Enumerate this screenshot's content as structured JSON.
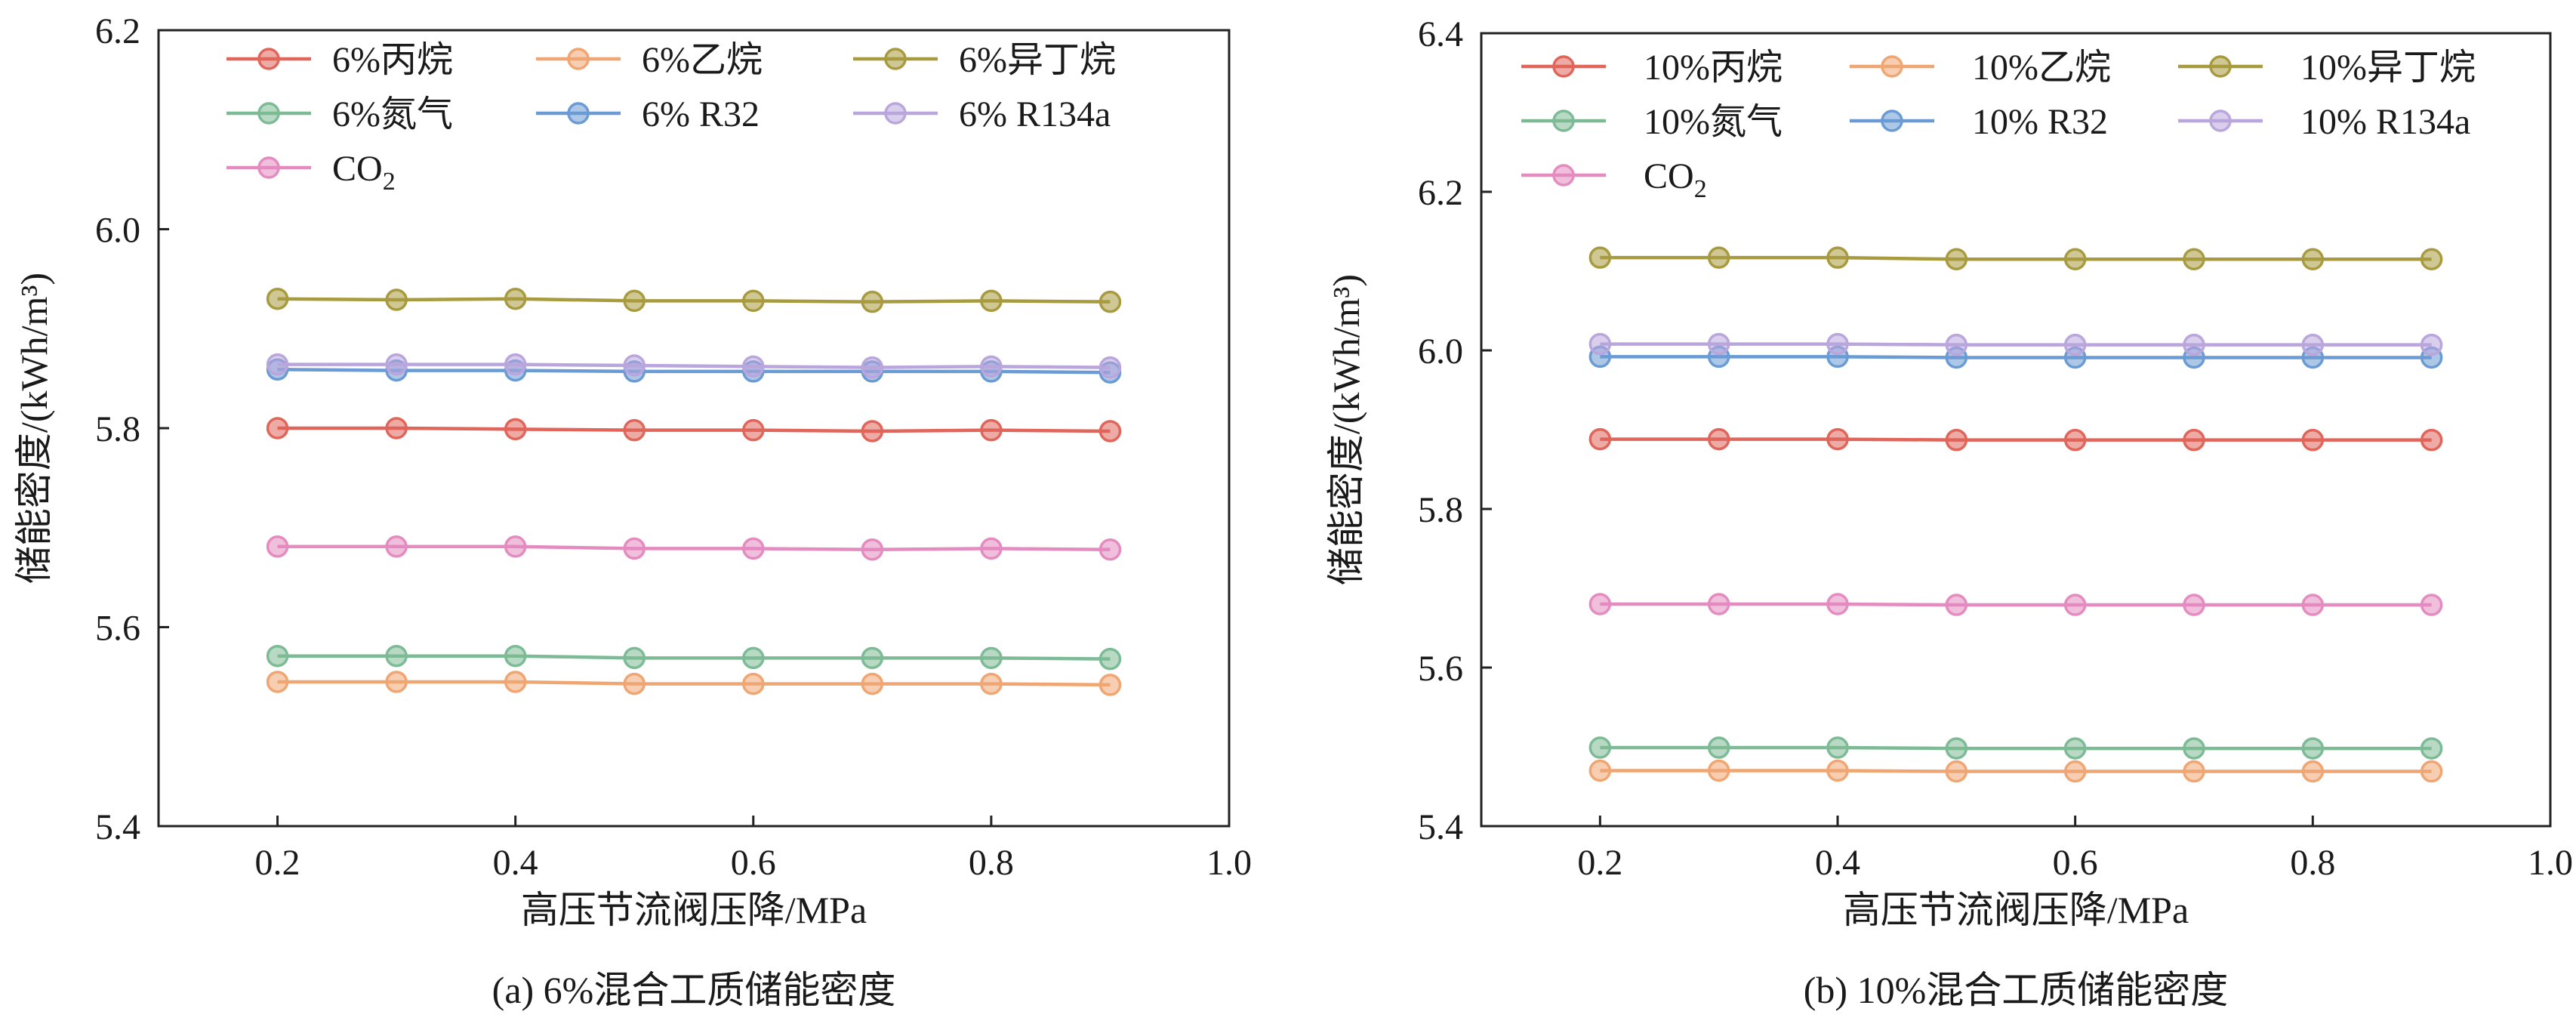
{
  "chart_data": [
    {
      "type": "line",
      "panel": "a",
      "caption": "(a) 6%混合工质储能密度",
      "xlabel": "高压节流阀压降/MPa",
      "ylabel": "储能密度/(kWh/m³)",
      "xlim": [
        0.1,
        1.0
      ],
      "ylim": [
        5.4,
        6.2
      ],
      "xticks": [
        0.2,
        0.4,
        0.6,
        0.8,
        1.0
      ],
      "xtick_labels": [
        "0.2",
        "0.4",
        "0.6",
        "0.8",
        "1.0"
      ],
      "yticks": [
        5.4,
        5.6,
        5.8,
        6.0,
        6.2
      ],
      "ytick_labels": [
        "5.4",
        "5.6",
        "5.8",
        "6.0",
        "6.2"
      ],
      "legend_position": "top-left",
      "x": [
        0.2,
        0.3,
        0.4,
        0.5,
        0.6,
        0.7,
        0.8,
        0.9
      ],
      "series": [
        {
          "name": "6%丙烷",
          "color": "#e0655a",
          "values": [
            5.8,
            5.8,
            5.799,
            5.798,
            5.798,
            5.797,
            5.798,
            5.797
          ]
        },
        {
          "name": "6%乙烷",
          "color": "#f0a672",
          "values": [
            5.545,
            5.545,
            5.545,
            5.543,
            5.543,
            5.543,
            5.543,
            5.542
          ]
        },
        {
          "name": "6%异丁烷",
          "color": "#a89a3e",
          "values": [
            5.93,
            5.929,
            5.93,
            5.928,
            5.928,
            5.927,
            5.928,
            5.927
          ]
        },
        {
          "name": "6%氮气",
          "color": "#7dbb96",
          "values": [
            5.571,
            5.571,
            5.571,
            5.569,
            5.569,
            5.569,
            5.569,
            5.568
          ]
        },
        {
          "name": "6% R32",
          "color": "#6a9bd4",
          "values": [
            5.859,
            5.858,
            5.858,
            5.857,
            5.857,
            5.857,
            5.857,
            5.856
          ]
        },
        {
          "name": "6% R134a",
          "color": "#b9a6dc",
          "values": [
            5.864,
            5.864,
            5.864,
            5.863,
            5.862,
            5.861,
            5.862,
            5.861
          ]
        },
        {
          "name": "CO",
          "name_sub": "2",
          "color": "#e48bc0",
          "values": [
            5.681,
            5.681,
            5.681,
            5.679,
            5.679,
            5.678,
            5.679,
            5.678
          ]
        }
      ]
    },
    {
      "type": "line",
      "panel": "b",
      "caption": "(b) 10%混合工质储能密度",
      "xlabel": "高压节流阀压降/MPa",
      "ylabel": "储能密度/(kWh/m³)",
      "xlim": [
        0.1,
        1.0
      ],
      "ylim": [
        5.4,
        6.4
      ],
      "xticks": [
        0.2,
        0.4,
        0.6,
        0.8,
        1.0
      ],
      "xtick_labels": [
        "0.2",
        "0.4",
        "0.6",
        "0.8",
        "1.0"
      ],
      "yticks": [
        5.4,
        5.6,
        5.8,
        6.0,
        6.2,
        6.4
      ],
      "ytick_labels": [
        "5.4",
        "5.6",
        "5.8",
        "6.0",
        "6.2",
        "6.4"
      ],
      "legend_position": "top-left",
      "x": [
        0.2,
        0.3,
        0.4,
        0.5,
        0.6,
        0.7,
        0.8,
        0.9
      ],
      "series": [
        {
          "name": "10%丙烷",
          "color": "#e0655a",
          "values": [
            5.888,
            5.888,
            5.888,
            5.887,
            5.887,
            5.887,
            5.887,
            5.887
          ]
        },
        {
          "name": "10%乙烷",
          "color": "#f0a672",
          "values": [
            5.47,
            5.47,
            5.47,
            5.469,
            5.469,
            5.469,
            5.469,
            5.469
          ]
        },
        {
          "name": "10%异丁烷",
          "color": "#a89a3e",
          "values": [
            6.117,
            6.117,
            6.117,
            6.115,
            6.115,
            6.115,
            6.115,
            6.115
          ]
        },
        {
          "name": "10%氮气",
          "color": "#7dbb96",
          "values": [
            5.499,
            5.499,
            5.499,
            5.498,
            5.498,
            5.498,
            5.498,
            5.498
          ]
        },
        {
          "name": "10% R32",
          "color": "#6a9bd4",
          "values": [
            5.992,
            5.992,
            5.992,
            5.991,
            5.991,
            5.991,
            5.991,
            5.991
          ]
        },
        {
          "name": "10% R134a",
          "color": "#b9a6dc",
          "values": [
            6.008,
            6.008,
            6.008,
            6.007,
            6.007,
            6.007,
            6.007,
            6.007
          ]
        },
        {
          "name": "CO",
          "name_sub": "2",
          "color": "#e48bc0",
          "values": [
            5.68,
            5.68,
            5.68,
            5.679,
            5.679,
            5.679,
            5.679,
            5.679
          ]
        }
      ]
    }
  ]
}
